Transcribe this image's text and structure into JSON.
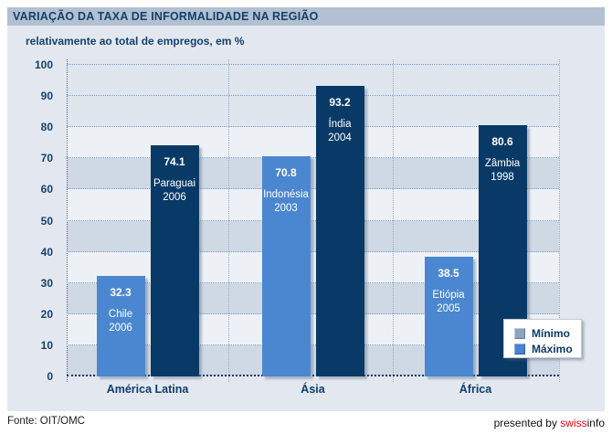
{
  "header": {
    "title": "VARIAÇÃO DA TAXA DE INFORMALIDADE NA REGIÃO"
  },
  "subtitle": "relativamente ao total de empregos, em %",
  "legend": {
    "items": [
      {
        "label": "Mínimo",
        "swatch": "#8ea3bd",
        "swatch_light": "#bfcbdb",
        "swatch_dark": "#5f7d9e"
      },
      {
        "label": "Máximo",
        "swatch": "#4a82cf",
        "swatch_light": "#8fb2e4",
        "swatch_dark": "#2b5ca6"
      }
    ]
  },
  "footer": {
    "source": "Fonte: OIT/OMC",
    "presented_prefix": "presented by ",
    "brand_swiss": "swiss",
    "brand_info": "info",
    "brand_red": "#e30613"
  },
  "chart_data": {
    "type": "bar",
    "title": "VARIAÇÃO DA TAXA DE INFORMALIDADE NA REGIÃO",
    "subtitle": "relativamente ao total de empregos, em %",
    "categories": [
      "América Latina",
      "Ásia",
      "África"
    ],
    "series": [
      {
        "name": "Mínimo",
        "color": "#4b87d0",
        "values": [
          32.3,
          70.8,
          38.5
        ],
        "annotations": [
          [
            "Chile",
            "2006"
          ],
          [
            "Indonésia",
            "2003"
          ],
          [
            "Etiópia",
            "2005"
          ]
        ]
      },
      {
        "name": "Máximo",
        "color": "#093a67",
        "values": [
          74.1,
          93.2,
          80.6
        ],
        "annotations": [
          [
            "Paraguai",
            "2006"
          ],
          [
            "Índia",
            "2004"
          ],
          [
            "Zâmbia",
            "1998"
          ]
        ]
      }
    ],
    "ylim": [
      0,
      100
    ],
    "yticks": [
      0,
      10,
      20,
      30,
      40,
      50,
      60,
      70,
      80,
      90,
      100
    ],
    "grid": "dotted horizontal gridlines every 10, dotted vertical category separators, alternating background bands",
    "legend_position": "bottom-right"
  }
}
